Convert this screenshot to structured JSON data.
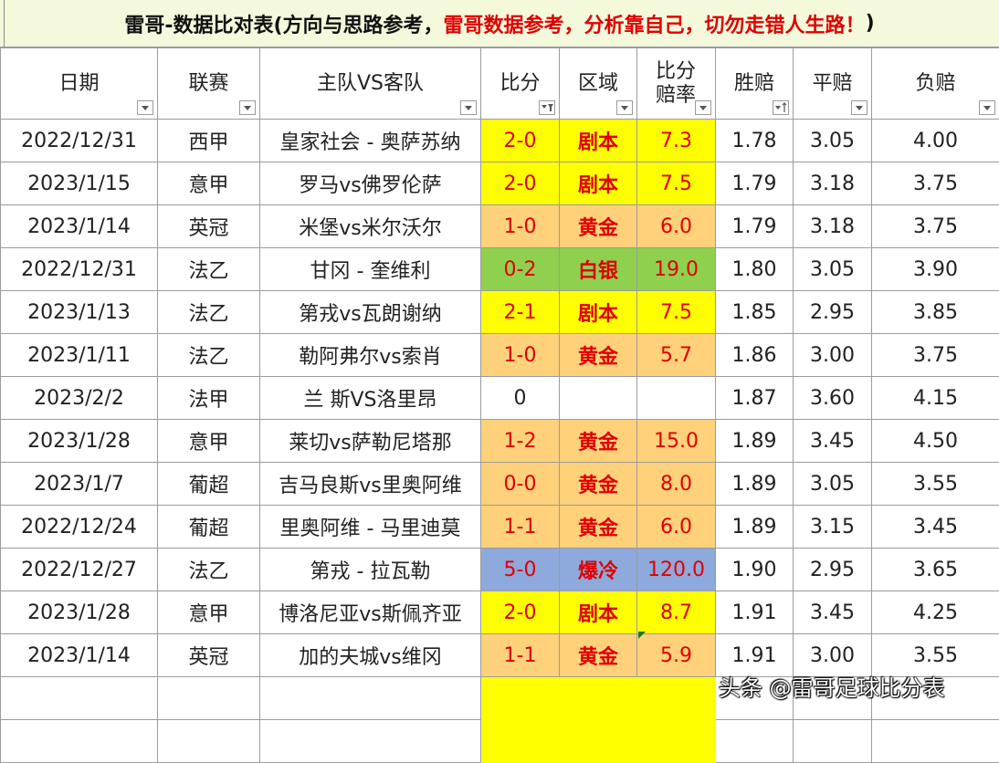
{
  "title": {
    "black": "雷哥-数据比对表(方向与思路参考，",
    "red": "雷哥数据参考，分析靠自己，切勿走错人生路！",
    "end": ")"
  },
  "headers": [
    "日期",
    "联赛",
    "主队VS客队",
    "比分",
    "区域",
    "比分\n赔率",
    "胜赔",
    "平赔",
    "负赔"
  ],
  "rows": [
    {
      "date": "2022/12/31",
      "league": "西甲",
      "teams": "皇家社会 - 奥萨苏纳",
      "score": "2-0",
      "zone": "剧本",
      "odds": "7.3",
      "win": "1.78",
      "draw": "3.05",
      "lose": "4.00",
      "color": "y"
    },
    {
      "date": "2023/1/15",
      "league": "意甲",
      "teams": "罗马vs佛罗伦萨",
      "score": "2-0",
      "zone": "剧本",
      "odds": "7.5",
      "win": "1.79",
      "draw": "3.18",
      "lose": "3.75",
      "color": "y"
    },
    {
      "date": "2023/1/14",
      "league": "英冠",
      "teams": "米堡vs米尔沃尔",
      "score": "1-0",
      "zone": "黄金",
      "odds": "6.0",
      "win": "1.79",
      "draw": "3.18",
      "lose": "3.75",
      "color": "o"
    },
    {
      "date": "2022/12/31",
      "league": "法乙",
      "teams": "甘冈 - 奎维利",
      "score": "0-2",
      "zone": "白银",
      "odds": "19.0",
      "win": "1.80",
      "draw": "3.05",
      "lose": "3.90",
      "color": "g"
    },
    {
      "date": "2023/1/13",
      "league": "法乙",
      "teams": "第戎vs瓦朗谢纳",
      "score": "2-1",
      "zone": "剧本",
      "odds": "7.5",
      "win": "1.85",
      "draw": "2.95",
      "lose": "3.85",
      "color": "y"
    },
    {
      "date": "2023/1/11",
      "league": "法乙",
      "teams": "勒阿弗尔vs索肖",
      "score": "1-0",
      "zone": "黄金",
      "odds": "5.7",
      "win": "1.86",
      "draw": "3.00",
      "lose": "3.75",
      "color": "o"
    },
    {
      "date": "2023/2/2",
      "league": "法甲",
      "teams": "兰 斯VS洛里昂",
      "score": "0",
      "zone": "",
      "odds": "",
      "win": "1.87",
      "draw": "3.60",
      "lose": "4.15",
      "color": ""
    },
    {
      "date": "2023/1/28",
      "league": "意甲",
      "teams": "莱切vs萨勒尼塔那",
      "score": "1-2",
      "zone": "黄金",
      "odds": "15.0",
      "win": "1.89",
      "draw": "3.45",
      "lose": "4.50",
      "color": "o"
    },
    {
      "date": "2023/1/7",
      "league": "葡超",
      "teams": "吉马良斯vs里奥阿维",
      "score": "0-0",
      "zone": "黄金",
      "odds": "8.0",
      "win": "1.89",
      "draw": "3.05",
      "lose": "3.55",
      "color": "o"
    },
    {
      "date": "2022/12/24",
      "league": "葡超",
      "teams": "里奥阿维 - 马里迪莫",
      "score": "1-1",
      "zone": "黄金",
      "odds": "6.0",
      "win": "1.89",
      "draw": "3.15",
      "lose": "3.45",
      "color": "o"
    },
    {
      "date": "2022/12/27",
      "league": "法乙",
      "teams": "第戎 - 拉瓦勒",
      "score": "5-0",
      "zone": "爆冷",
      "odds": "120.0",
      "win": "1.90",
      "draw": "2.95",
      "lose": "3.65",
      "color": "b"
    },
    {
      "date": "2023/1/28",
      "league": "意甲",
      "teams": "博洛尼亚vs斯佩齐亚",
      "score": "2-0",
      "zone": "剧本",
      "odds": "8.7",
      "win": "1.91",
      "draw": "3.45",
      "lose": "4.25",
      "color": "y"
    },
    {
      "date": "2023/1/14",
      "league": "英冠",
      "teams": "加的夫城vs维冈",
      "score": "1-1",
      "zone": "黄金",
      "odds": "5.9",
      "win": "1.91",
      "draw": "3.00",
      "lose": "3.55",
      "color": "o"
    }
  ],
  "watermark": "头条 @雷哥足球比分表",
  "colors": {
    "yellow": "#ffff00",
    "orange": "#ffd17a",
    "green": "#8fd04e",
    "blue": "#8ea9db",
    "red": "#e00000"
  }
}
